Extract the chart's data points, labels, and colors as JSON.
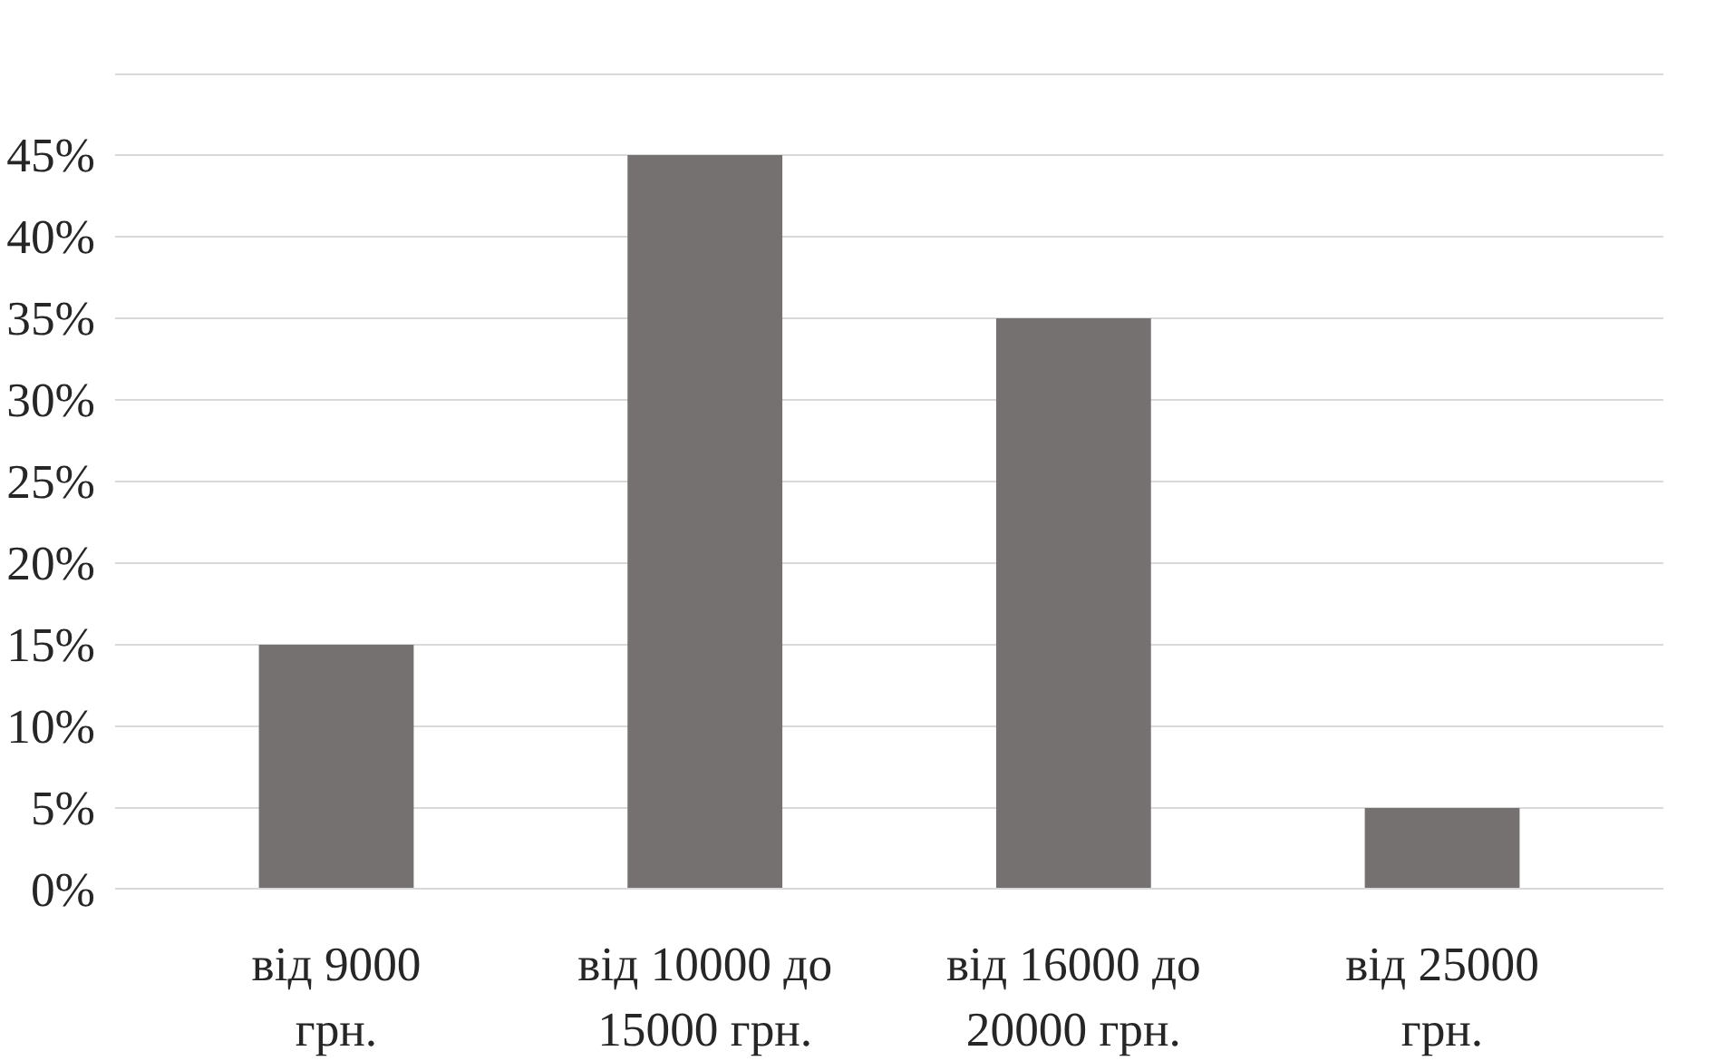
{
  "chart_data": {
    "type": "bar",
    "categories": [
      "від 9000\nгрн.",
      "від 10000 до\n15000 грн.",
      "від 16000 до\n20000 грн.",
      "від 25000\nгрн."
    ],
    "values": [
      15,
      45,
      35,
      5
    ],
    "color": "#767171",
    "ylim": [
      0,
      50
    ],
    "yticks": [
      {
        "value": 0,
        "label": "0%"
      },
      {
        "value": 5,
        "label": "5%"
      },
      {
        "value": 10,
        "label": "10%"
      },
      {
        "value": 15,
        "label": "15%"
      },
      {
        "value": 20,
        "label": "20%"
      },
      {
        "value": 25,
        "label": "25%"
      },
      {
        "value": 30,
        "label": "30%"
      },
      {
        "value": 35,
        "label": "35%"
      },
      {
        "value": 40,
        "label": "40%"
      },
      {
        "value": 45,
        "label": "45%"
      },
      {
        "value": 50,
        "label": null
      }
    ],
    "grid": "y"
  }
}
